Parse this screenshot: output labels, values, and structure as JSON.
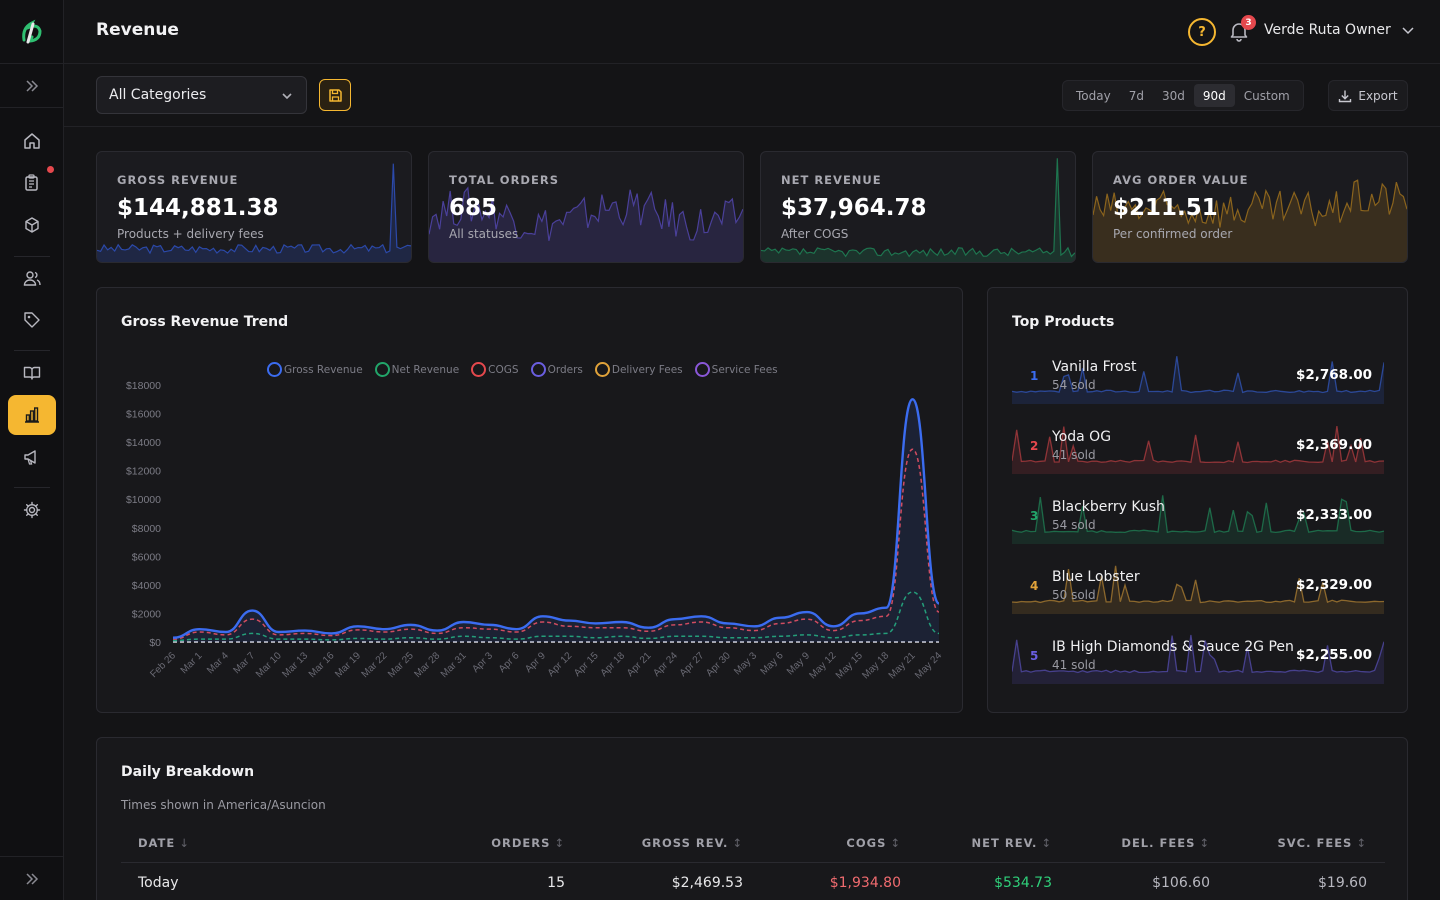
{
  "app": {
    "title": "Revenue"
  },
  "header": {
    "help_icon": "?",
    "notification_count": "3",
    "user_name": "Verde Ruta Owner"
  },
  "sidebar": {
    "items": [
      {
        "name": "home-icon",
        "active": false
      },
      {
        "name": "orders-icon",
        "active": false,
        "dot": true
      },
      {
        "name": "products-icon",
        "active": false
      },
      {
        "name": "customers-icon",
        "active": false
      },
      {
        "name": "tags-icon",
        "active": false
      },
      {
        "name": "catalog-icon",
        "active": false
      },
      {
        "name": "analytics-icon",
        "active": true
      },
      {
        "name": "marketing-icon",
        "active": false
      },
      {
        "name": "settings-icon",
        "active": false
      }
    ]
  },
  "toolbar": {
    "category_select": "All Categories",
    "ranges": [
      "Today",
      "7d",
      "30d",
      "90d",
      "Custom"
    ],
    "active_range": "90d",
    "export_label": "Export"
  },
  "kpis": [
    {
      "label": "GROSS REVENUE",
      "value": "$144,881.38",
      "sub": "Products + delivery fees",
      "color": "#2f54c8"
    },
    {
      "label": "TOTAL ORDERS",
      "value": "685",
      "sub": "All statuses",
      "color": "#5548b5"
    },
    {
      "label": "NET REVENUE",
      "value": "$37,964.78",
      "sub": "After COGS",
      "color": "#1f8a5a"
    },
    {
      "label": "AVG ORDER VALUE",
      "value": "$211.51",
      "sub": "Per confirmed order",
      "color": "#a4741d"
    }
  ],
  "trend": {
    "title": "Gross Revenue Trend",
    "legend": [
      {
        "name": "Gross Revenue",
        "color": "#3b6cf0"
      },
      {
        "name": "Net Revenue",
        "color": "#22a56a"
      },
      {
        "name": "COGS",
        "color": "#e5484d"
      },
      {
        "name": "Orders",
        "color": "#6a5ee0"
      },
      {
        "name": "Delivery Fees",
        "color": "#e0a23a"
      },
      {
        "name": "Service Fees",
        "color": "#8a57d8"
      }
    ]
  },
  "chart_data": {
    "type": "line",
    "x": [
      "Feb 26",
      "Mar 1",
      "Mar 4",
      "Mar 7",
      "Mar 10",
      "Mar 13",
      "Mar 16",
      "Mar 19",
      "Mar 22",
      "Mar 25",
      "Mar 28",
      "Mar 31",
      "Apr 3",
      "Apr 6",
      "Apr 9",
      "Apr 12",
      "Apr 15",
      "Apr 18",
      "Apr 21",
      "Apr 24",
      "Apr 27",
      "Apr 30",
      "May 3",
      "May 6",
      "May 9",
      "May 12",
      "May 15",
      "May 18",
      "May 21",
      "May 24"
    ],
    "y_ticks": [
      "$0",
      "$2000",
      "$4000",
      "$6000",
      "$8000",
      "$10000",
      "$12000",
      "$14000",
      "$16000",
      "$18000"
    ],
    "ylim": [
      0,
      18000
    ],
    "series": [
      {
        "name": "Gross Revenue",
        "values": [
          300,
          900,
          700,
          2200,
          700,
          800,
          600,
          1100,
          900,
          1200,
          800,
          1400,
          1200,
          900,
          1800,
          1500,
          1300,
          1400,
          1000,
          1600,
          1800,
          1300,
          1100,
          1700,
          2100,
          1100,
          2000,
          2400,
          17000,
          2700
        ]
      },
      {
        "name": "COGS",
        "values": [
          200,
          700,
          500,
          1600,
          500,
          600,
          450,
          850,
          700,
          900,
          600,
          1000,
          900,
          700,
          1400,
          1100,
          1000,
          1000,
          750,
          1200,
          1400,
          1000,
          800,
          1300,
          1600,
          800,
          1500,
          1800,
          13500,
          2100
        ]
      },
      {
        "name": "Net Revenue",
        "values": [
          100,
          200,
          200,
          600,
          200,
          200,
          150,
          250,
          200,
          300,
          200,
          400,
          300,
          200,
          400,
          400,
          300,
          400,
          250,
          400,
          400,
          300,
          300,
          400,
          500,
          300,
          500,
          600,
          3500,
          600
        ]
      }
    ]
  },
  "top_products": {
    "title": "Top Products",
    "items": [
      {
        "rank": "1",
        "name": "Vanilla Frost",
        "sold": "54 sold",
        "value": "$2,768.00",
        "color": "#3b6cf0"
      },
      {
        "rank": "2",
        "name": "Yoda OG",
        "sold": "41 sold",
        "value": "$2,369.00",
        "color": "#e5484d"
      },
      {
        "rank": "3",
        "name": "Blackberry Kush",
        "sold": "54 sold",
        "value": "$2,333.00",
        "color": "#22a56a"
      },
      {
        "rank": "4",
        "name": "Blue Lobster",
        "sold": "50 sold",
        "value": "$2,329.00",
        "color": "#e0a23a"
      },
      {
        "rank": "5",
        "name": "IB High Diamonds & Sauce 2G Pen",
        "sold": "41 sold",
        "value": "$2,255.00",
        "color": "#6a5ee0"
      }
    ]
  },
  "daily": {
    "title": "Daily Breakdown",
    "subtitle": "Times shown in America/Asuncion",
    "columns": [
      "DATE",
      "ORDERS",
      "GROSS REV.",
      "COGS",
      "NET REV.",
      "DEL. FEES",
      "SVC. FEES"
    ],
    "sort_icons": [
      "↓",
      "↕",
      "↕",
      "↕",
      "↕",
      "↕",
      "↕"
    ],
    "rows": [
      {
        "date": "Today",
        "orders": "15",
        "gross": "$2,469.53",
        "cogs": "$1,934.80",
        "net": "$534.73",
        "del": "$106.60",
        "svc": "$19.60"
      }
    ]
  }
}
